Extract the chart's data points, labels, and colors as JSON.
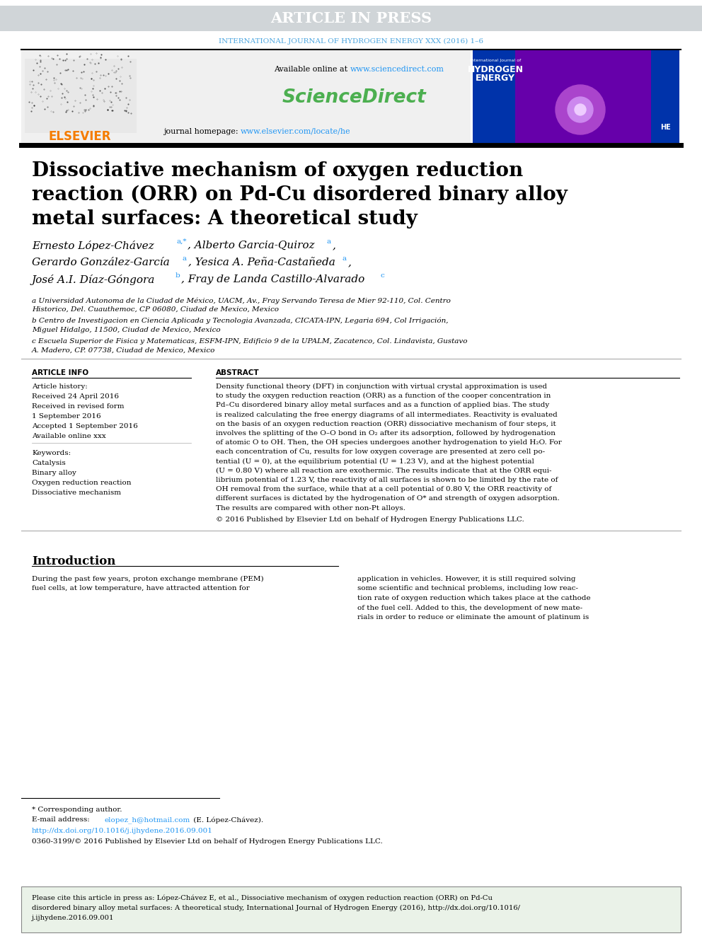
{
  "article_in_press_text": "ARTICLE IN PRESS",
  "article_in_press_bg": "#d0d5d8",
  "article_in_press_color": "#ffffff",
  "journal_line": "INTERNATIONAL JOURNAL OF HYDROGEN ENERGY XXX (2016) 1–6",
  "journal_line_color": "#4da6e0",
  "available_online_text": "Available online at ",
  "available_online_url": "www.sciencedirect.com",
  "sciencedirect_text": "ScienceDirect",
  "sciencedirect_color": "#4caf50",
  "journal_homepage_text": "journal homepage: ",
  "journal_homepage_url": "www.elsevier.com/locate/he",
  "url_color": "#2196f3",
  "elsevier_color": "#f57c00",
  "header_bg": "#efefef",
  "divider_color": "#000000",
  "paper_title_line1": "Dissociative mechanism of oxygen reduction",
  "paper_title_line2": "reaction (ORR) on Pd-Cu disordered binary alloy",
  "paper_title_line3": "metal surfaces: A theoretical study",
  "affil_a_line1": "a Universidad Autonoma de la Ciudad de México, UACM, Av., Fray Servando Teresa de Mier 92-110, Col. Centro",
  "affil_a_line2": "Historico, Del. Cuauthemoc, CP 06080, Ciudad de Mexico, Mexico",
  "affil_b_line1": "b Centro de Investigacion en Ciencia Aplicada y Tecnologia Avanzada, CICATA-IPN, Legaria 694, Col Irrigación,",
  "affil_b_line2": "Miguel Hidalgo, 11500, Ciudad de Mexico, Mexico",
  "affil_c_line1": "c Escuela Superior de Fisica y Matematicas, ESFM-IPN, Edificio 9 de la UPALM, Zacatenco, Col. Lindavista, Gustavo",
  "affil_c_line2": "A. Madero, CP. 07738, Ciudad de Mexico, Mexico",
  "article_info_title": "ARTICLE INFO",
  "article_history_title": "Article history:",
  "received_1": "Received 24 April 2016",
  "received_revised": "Received in revised form",
  "received_revised_2": "1 September 2016",
  "accepted": "Accepted 1 September 2016",
  "available_xxx": "Available online xxx",
  "keywords_title": "Keywords:",
  "keyword1": "Catalysis",
  "keyword2": "Binary alloy",
  "keyword3": "Oxygen reduction reaction",
  "keyword4": "Dissociative mechanism",
  "abstract_title": "ABSTRACT",
  "abstract_lines": [
    "Density functional theory (DFT) in conjunction with virtual crystal approximation is used",
    "to study the oxygen reduction reaction (ORR) as a function of the cooper concentration in",
    "Pd–Cu disordered binary alloy metal surfaces and as a function of applied bias. The study",
    "is realized calculating the free energy diagrams of all intermediates. Reactivity is evaluated",
    "on the basis of an oxygen reduction reaction (ORR) dissociative mechanism of four steps, it",
    "involves the splitting of the O–O bond in O₂ after its adsorption, followed by hydrogenation",
    "of atomic O to OH. Then, the OH species undergoes another hydrogenation to yield H₂O. For",
    "each concentration of Cu, results for low oxygen coverage are presented at zero cell po-",
    "tential (U = 0), at the equilibrium potential (U = 1.23 V), and at the highest potential",
    "(U = 0.80 V) where all reaction are exothermic. The results indicate that at the ORR equi-",
    "librium potential of 1.23 V, the reactivity of all surfaces is shown to be limited by the rate of",
    "OH removal from the surface, while that at a cell potential of 0.80 V, the ORR reactivity of",
    "different surfaces is dictated by the hydrogenation of O* and strength of oxygen adsorption.",
    "The results are compared with other non-Pt alloys."
  ],
  "copyright_text": "© 2016 Published by Elsevier Ltd on behalf of Hydrogen Energy Publications LLC.",
  "intro_title": "Introduction",
  "intro_left_lines": [
    "During the past few years, proton exchange membrane (PEM)",
    "fuel cells, at low temperature, have attracted attention for"
  ],
  "intro_right_lines": [
    "application in vehicles. However, it is still required solving",
    "some scientific and technical problems, including low reac-",
    "tion rate of oxygen reduction which takes place at the cathode",
    "of the fuel cell. Added to this, the development of new mate-",
    "rials in order to reduce or eliminate the amount of platinum is"
  ],
  "footnote_star": "* Corresponding author.",
  "footnote_email_label": "E-mail address: ",
  "footnote_email": "elopez_h@hotmail.com",
  "footnote_email_suffix": " (E. López-Chávez).",
  "footnote_doi": "http://dx.doi.org/10.1016/j.ijhydene.2016.09.001",
  "footnote_issn": "0360-3199/© 2016 Published by Elsevier Ltd on behalf of Hydrogen Energy Publications LLC.",
  "cite_box_lines": [
    "Please cite this article in press as: López-Chávez E, et al., Dissociative mechanism of oxygen reduction reaction (ORR) on Pd-Cu",
    "disordered binary alloy metal surfaces: A theoretical study, International Journal of Hydrogen Energy (2016), http://dx.doi.org/10.1016/",
    "j.ijhydene.2016.09.001"
  ],
  "cite_box_bg": "#eaf2e8",
  "bg_color": "#ffffff"
}
